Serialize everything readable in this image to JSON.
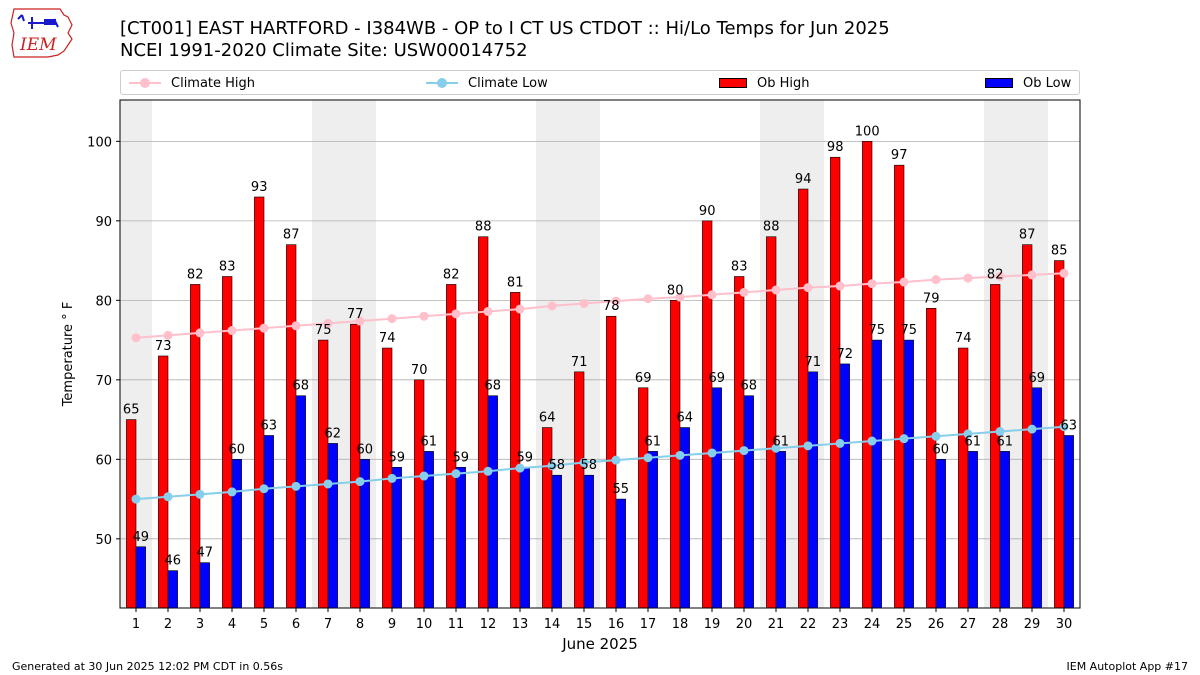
{
  "header": {
    "title_line1": "[CT001] EAST HARTFORD - I384WB - OP to I CT US  CTDOT :: Hi/Lo Temps for Jun 2025",
    "title_line2": "NCEI 1991-2020 Climate Site: USW00014752",
    "logo_text": "IEM"
  },
  "footer": {
    "left": "Generated at 30 Jun 2025 12:02 PM CDT in 0.56s",
    "right": "IEM Autoplot App #17"
  },
  "colors": {
    "ob_high": "#ff0000",
    "ob_low": "#0000ff",
    "climate_high": "#ffc0cb",
    "climate_low": "#87ceeb",
    "weekend_band": "#eeeeee",
    "grid": "#b0b0b0",
    "logo": "#cc2222"
  },
  "chart_data": {
    "type": "bar",
    "xlabel": "June 2025",
    "ylabel": "Temperature ° F",
    "ylim": [
      41.3,
      105.2
    ],
    "yticks": [
      50,
      60,
      70,
      80,
      90,
      100
    ],
    "grid": "y",
    "legend_position": "top",
    "categories": [
      "1",
      "2",
      "3",
      "4",
      "5",
      "6",
      "7",
      "8",
      "9",
      "10",
      "11",
      "12",
      "13",
      "14",
      "15",
      "16",
      "17",
      "18",
      "19",
      "20",
      "21",
      "22",
      "23",
      "24",
      "25",
      "26",
      "27",
      "28",
      "29",
      "30"
    ],
    "weekend_days": [
      1,
      7,
      8,
      14,
      15,
      21,
      22,
      28,
      29
    ],
    "series": [
      {
        "name": "Climate High",
        "kind": "line",
        "values": [
          75.3,
          75.6,
          75.9,
          76.2,
          76.5,
          76.8,
          77.1,
          77.4,
          77.7,
          78.0,
          78.3,
          78.6,
          78.9,
          79.3,
          79.6,
          79.9,
          80.2,
          80.4,
          80.7,
          81.0,
          81.3,
          81.6,
          81.8,
          82.1,
          82.3,
          82.6,
          82.8,
          83.0,
          83.2,
          83.4
        ]
      },
      {
        "name": "Climate Low",
        "kind": "line",
        "values": [
          55.0,
          55.3,
          55.6,
          55.9,
          56.3,
          56.6,
          56.9,
          57.2,
          57.6,
          57.9,
          58.2,
          58.5,
          58.9,
          59.2,
          59.6,
          59.9,
          60.2,
          60.5,
          60.8,
          61.1,
          61.4,
          61.7,
          62.0,
          62.3,
          62.6,
          62.9,
          63.2,
          63.5,
          63.8,
          64.1
        ]
      },
      {
        "name": "Ob High",
        "kind": "bar",
        "values": [
          65,
          73,
          82,
          83,
          93,
          87,
          75,
          77,
          74,
          70,
          82,
          88,
          81,
          64,
          71,
          78,
          69,
          80,
          90,
          83,
          88,
          94,
          98,
          100,
          97,
          79,
          74,
          82,
          87,
          85
        ],
        "labels": [
          "65",
          "73",
          "82",
          "83",
          "93",
          "87",
          "75",
          "77",
          "74",
          "70",
          "82",
          "88",
          "81",
          "64",
          "71",
          "78",
          "69",
          "80",
          "90",
          "83",
          "88",
          "94",
          "98",
          "100",
          "97",
          "79",
          "74",
          "82",
          "87",
          "85"
        ]
      },
      {
        "name": "Ob Low",
        "kind": "bar",
        "values": [
          49,
          46,
          47,
          60,
          63,
          68,
          62,
          60,
          59,
          61,
          59,
          68,
          59,
          58,
          58,
          55,
          61,
          64,
          69,
          68,
          61,
          71,
          72,
          75,
          75,
          60,
          61,
          61,
          69,
          63
        ],
        "labels": [
          "49",
          "46",
          "47",
          "60",
          "63",
          "68",
          "62",
          "60",
          "59",
          "61",
          "59",
          "68",
          "59",
          "58",
          "58",
          "55",
          "61",
          "64",
          "69",
          "68",
          "61",
          "71",
          "72",
          "75",
          "75",
          "60",
          "61",
          "61",
          "69",
          "63"
        ]
      }
    ]
  }
}
